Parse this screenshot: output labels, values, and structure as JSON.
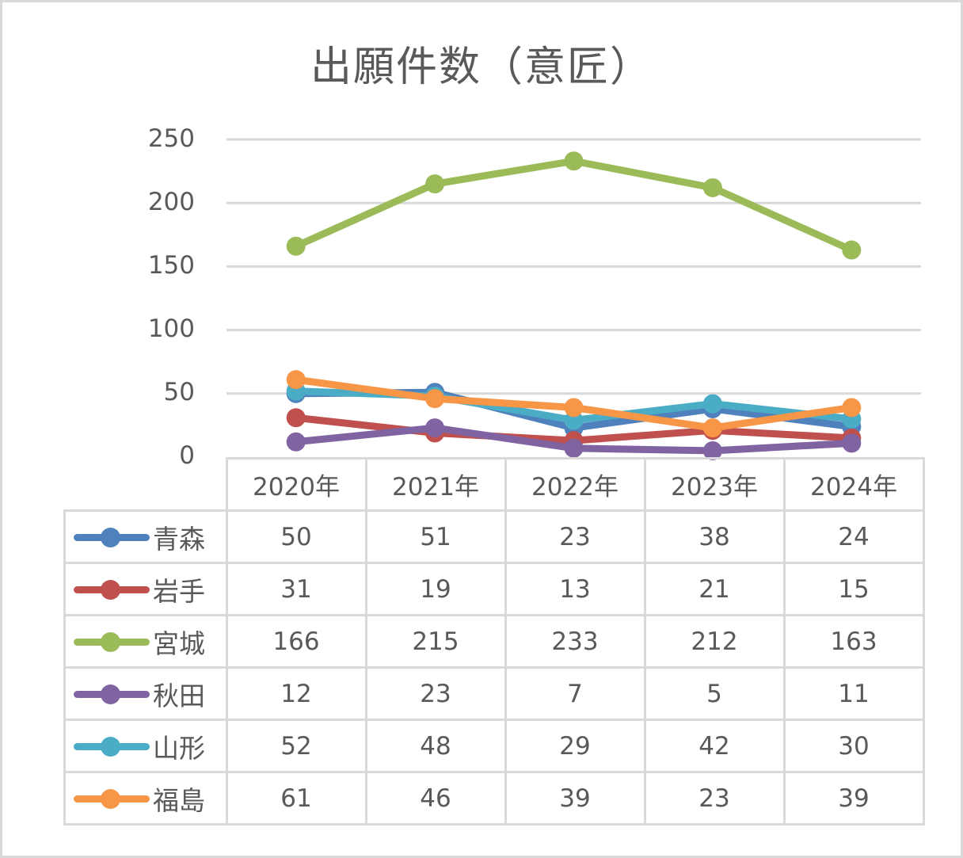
{
  "chart_data": {
    "type": "line",
    "title": "出願件数（意匠）",
    "xlabel": "",
    "ylabel": "",
    "ylim": [
      0,
      250
    ],
    "yticks": [
      0,
      50,
      100,
      150,
      200,
      250
    ],
    "grid": true,
    "legend_position": "data-table",
    "categories": [
      "2020年",
      "2021年",
      "2022年",
      "2023年",
      "2024年"
    ],
    "series": [
      {
        "name": "青森",
        "color": "#4f81bd",
        "values": [
          50,
          51,
          23,
          38,
          24
        ]
      },
      {
        "name": "岩手",
        "color": "#c0504d",
        "values": [
          31,
          19,
          13,
          21,
          15
        ]
      },
      {
        "name": "宮城",
        "color": "#9bbb59",
        "values": [
          166,
          215,
          233,
          212,
          163
        ]
      },
      {
        "name": "秋田",
        "color": "#8064a2",
        "values": [
          12,
          23,
          7,
          5,
          11
        ]
      },
      {
        "name": "山形",
        "color": "#4bacc6",
        "values": [
          52,
          48,
          29,
          42,
          30
        ]
      },
      {
        "name": "福島",
        "color": "#f79646",
        "values": [
          61,
          46,
          39,
          23,
          39
        ]
      }
    ]
  },
  "labels": {
    "title": "出願件数（意匠）",
    "yticks": [
      "250",
      "200",
      "150",
      "100",
      "50",
      "0"
    ],
    "categories": [
      "2020年",
      "2021年",
      "2022年",
      "2023年",
      "2024年"
    ],
    "rows": [
      {
        "name": "青森",
        "values": [
          "50",
          "51",
          "23",
          "38",
          "24"
        ]
      },
      {
        "name": "岩手",
        "values": [
          "31",
          "19",
          "13",
          "21",
          "15"
        ]
      },
      {
        "name": "宮城",
        "values": [
          "166",
          "215",
          "233",
          "212",
          "163"
        ]
      },
      {
        "name": "秋田",
        "values": [
          "12",
          "23",
          "7",
          "5",
          "11"
        ]
      },
      {
        "name": "山形",
        "values": [
          "52",
          "48",
          "29",
          "42",
          "30"
        ]
      },
      {
        "name": "福島",
        "values": [
          "61",
          "46",
          "39",
          "23",
          "39"
        ]
      }
    ]
  }
}
